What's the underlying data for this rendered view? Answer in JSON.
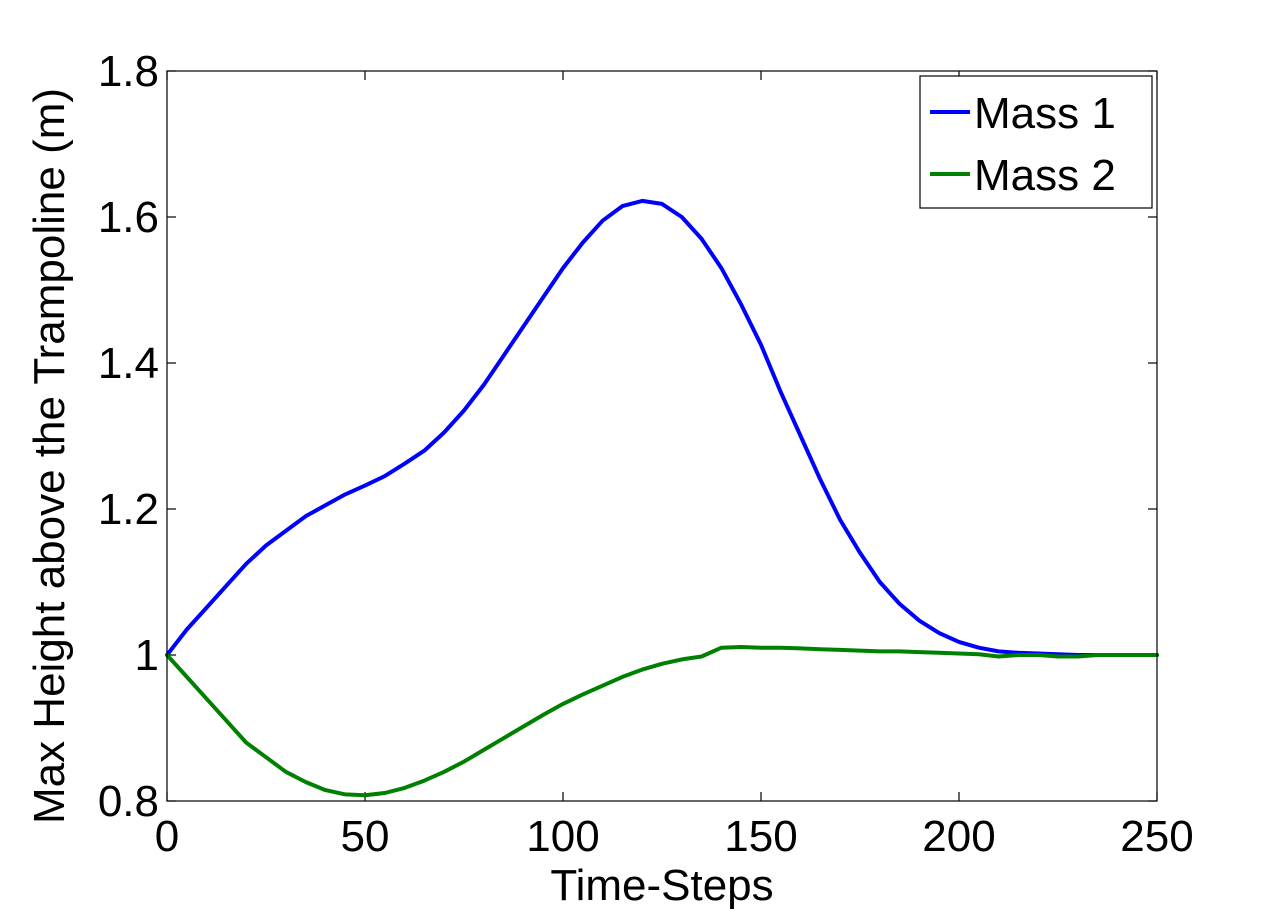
{
  "chart_data": {
    "type": "line",
    "xlabel": "Time-Steps",
    "ylabel": "Max Height above the Trampoline (m)",
    "xlim": [
      0,
      250
    ],
    "ylim": [
      0.8,
      1.8
    ],
    "xticks": [
      0,
      50,
      100,
      150,
      200,
      250
    ],
    "xtick_labels": [
      "0",
      "50",
      "100",
      "150",
      "200",
      "250"
    ],
    "yticks": [
      0.8,
      1.0,
      1.2,
      1.4,
      1.6,
      1.8
    ],
    "ytick_labels": [
      "0.8",
      "1",
      "1.2",
      "1.4",
      "1.6",
      "1.8"
    ],
    "grid": false,
    "legend_position": "top-right",
    "series": [
      {
        "name": "Mass 1",
        "color": "#0000ff",
        "x": [
          0,
          5,
          10,
          15,
          20,
          25,
          30,
          35,
          40,
          45,
          50,
          55,
          60,
          65,
          70,
          75,
          80,
          85,
          90,
          95,
          100,
          105,
          110,
          115,
          120,
          125,
          130,
          135,
          140,
          145,
          150,
          155,
          160,
          165,
          170,
          175,
          180,
          185,
          190,
          195,
          200,
          205,
          210,
          215,
          220,
          225,
          230,
          235,
          240,
          245,
          250
        ],
        "y": [
          1.0,
          1.035,
          1.065,
          1.095,
          1.125,
          1.15,
          1.17,
          1.19,
          1.205,
          1.22,
          1.232,
          1.245,
          1.262,
          1.28,
          1.305,
          1.335,
          1.37,
          1.41,
          1.45,
          1.49,
          1.53,
          1.565,
          1.595,
          1.615,
          1.622,
          1.618,
          1.6,
          1.57,
          1.53,
          1.48,
          1.425,
          1.36,
          1.3,
          1.24,
          1.185,
          1.14,
          1.1,
          1.07,
          1.047,
          1.03,
          1.018,
          1.01,
          1.005,
          1.003,
          1.002,
          1.001,
          1.0,
          1.0,
          1.0,
          1.0,
          1.0
        ]
      },
      {
        "name": "Mass 2",
        "color": "#008000",
        "x": [
          0,
          5,
          10,
          15,
          20,
          25,
          30,
          35,
          40,
          45,
          50,
          55,
          60,
          65,
          70,
          75,
          80,
          85,
          90,
          95,
          100,
          105,
          110,
          115,
          120,
          125,
          130,
          135,
          140,
          145,
          150,
          155,
          160,
          165,
          170,
          175,
          180,
          185,
          190,
          195,
          200,
          205,
          210,
          215,
          220,
          225,
          230,
          235,
          240,
          245,
          250
        ],
        "y": [
          1.0,
          0.97,
          0.94,
          0.91,
          0.88,
          0.86,
          0.84,
          0.826,
          0.815,
          0.809,
          0.808,
          0.811,
          0.818,
          0.828,
          0.84,
          0.854,
          0.87,
          0.886,
          0.902,
          0.918,
          0.933,
          0.946,
          0.958,
          0.97,
          0.98,
          0.988,
          0.994,
          0.998,
          1.01,
          1.011,
          1.01,
          1.01,
          1.009,
          1.008,
          1.007,
          1.006,
          1.005,
          1.005,
          1.004,
          1.003,
          1.002,
          1.001,
          0.998,
          1.0,
          1.0,
          0.998,
          0.998,
          1.0,
          1.0,
          1.0,
          1.0
        ]
      }
    ]
  }
}
